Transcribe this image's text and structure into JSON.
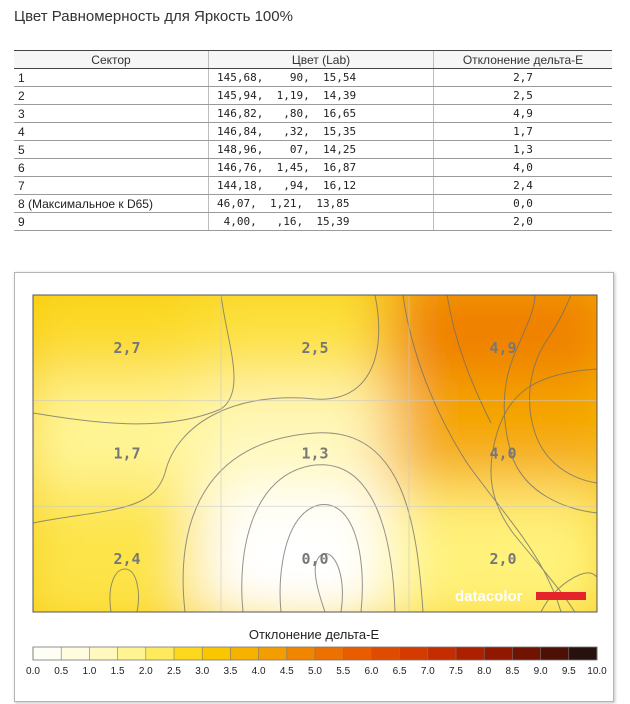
{
  "title": "Цвет Равномерность для Яркость 100%",
  "table": {
    "headers": [
      "Сектор",
      "Цвет (Lab)",
      "Отклонение дельта-E"
    ],
    "rows": [
      {
        "sector": "1",
        "lab": "145,68,    90,  15,54",
        "de": "2,7"
      },
      {
        "sector": "2",
        "lab": "145,94,  1,19,  14,39",
        "de": "2,5"
      },
      {
        "sector": "3",
        "lab": "146,82,   ,80,  16,65",
        "de": "4,9"
      },
      {
        "sector": "4",
        "lab": "146,84,   ,32,  15,35",
        "de": "1,7"
      },
      {
        "sector": "5",
        "lab": "148,96,    07,  14,25",
        "de": "1,3"
      },
      {
        "sector": "6",
        "lab": "146,76,  1,45,  16,87",
        "de": "4,0"
      },
      {
        "sector": "7",
        "lab": "144,18,   ,94,  16,12",
        "de": "2,4"
      },
      {
        "sector": "8 (Максимальное к D65)",
        "lab": "46,07,  1,21,  13,85",
        "de": "0,0"
      },
      {
        "sector": "9",
        "lab": " 4,00,   ,16,  15,39",
        "de": "2,0"
      }
    ]
  },
  "chart_data": {
    "type": "heatmap",
    "grid": [
      [
        2.7,
        2.5,
        4.9
      ],
      [
        1.7,
        1.3,
        4.0
      ],
      [
        2.4,
        0.0,
        2.0
      ]
    ],
    "cell_labels": [
      [
        "2,7",
        "2,5",
        "4,9"
      ],
      [
        "1,7",
        "1,3",
        "4,0"
      ],
      [
        "2,4",
        "0,0",
        "2,0"
      ]
    ],
    "colorbar_title": "Отклонение дельта-E",
    "colorbar_range": [
      0,
      10
    ],
    "colorbar_ticks": [
      "0.0",
      "0.5",
      "1.0",
      "1.5",
      "2.0",
      "2.5",
      "3.0",
      "3.5",
      "4.0",
      "4.5",
      "5.0",
      "5.5",
      "6.0",
      "6.5",
      "7.0",
      "7.5",
      "8.0",
      "8.5",
      "9.0",
      "9.5",
      "10.0"
    ],
    "brand": "datacolor",
    "brand_color": "#e3242b"
  }
}
